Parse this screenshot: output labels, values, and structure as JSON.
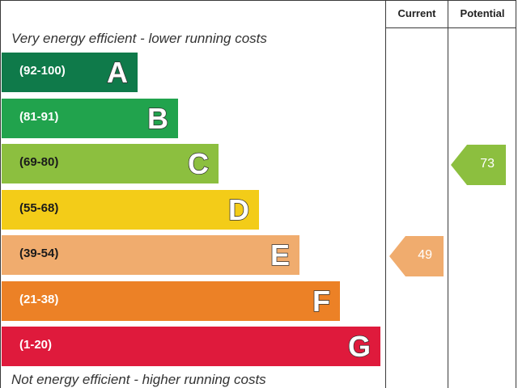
{
  "chart_data": {
    "type": "bar",
    "header": {
      "current": "Current",
      "potential": "Potential"
    },
    "top_caption": "Very energy efficient - lower running costs",
    "bottom_caption": "Not energy efficient - higher running costs",
    "bands": [
      {
        "range": "(92-100)",
        "letter": "A",
        "color": "#0f7a4a",
        "range_color": "#ffffff"
      },
      {
        "range": "(81-91)",
        "letter": "B",
        "color": "#21a34d",
        "range_color": "#ffffff"
      },
      {
        "range": "(69-80)",
        "letter": "C",
        "color": "#8cbf3f",
        "range_color": "#1a1a1a"
      },
      {
        "range": "(55-68)",
        "letter": "D",
        "color": "#f3cc18",
        "range_color": "#1a1a1a"
      },
      {
        "range": "(39-54)",
        "letter": "E",
        "color": "#f0ac6e",
        "range_color": "#1a1a1a"
      },
      {
        "range": "(21-38)",
        "letter": "F",
        "color": "#ec8126",
        "range_color": "#ffffff"
      },
      {
        "range": "(1-20)",
        "letter": "G",
        "color": "#df1a3c",
        "range_color": "#ffffff"
      }
    ],
    "current": {
      "value": 49,
      "band": "E",
      "color": "#f0ac6e"
    },
    "potential": {
      "value": 73,
      "band": "C",
      "color": "#8cbf3f"
    }
  }
}
